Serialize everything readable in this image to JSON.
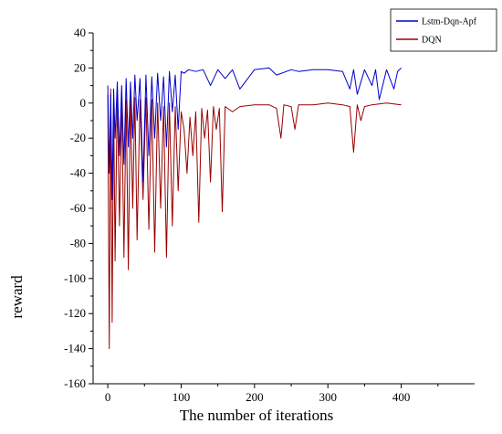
{
  "chart_data": {
    "type": "line",
    "title": "",
    "xlabel": "The number of iterations",
    "ylabel": "reward",
    "xlim": [
      -20,
      500
    ],
    "ylim": [
      -160,
      40
    ],
    "xticks": [
      0,
      100,
      200,
      300,
      400
    ],
    "yticks": [
      40,
      20,
      0,
      -20,
      -40,
      -60,
      -80,
      -100,
      -120,
      -140,
      -160
    ],
    "grid": false,
    "legend_position": "top-right",
    "series": [
      {
        "name": "Lstm-Dqn-Apf",
        "color": "#0000cc",
        "x": [
          0,
          2,
          4,
          6,
          8,
          10,
          13,
          16,
          19,
          22,
          25,
          28,
          31,
          34,
          37,
          40,
          44,
          48,
          52,
          56,
          60,
          64,
          68,
          72,
          76,
          80,
          84,
          88,
          92,
          96,
          100,
          104,
          110,
          120,
          130,
          140,
          150,
          160,
          170,
          180,
          200,
          220,
          230,
          250,
          260,
          280,
          300,
          320,
          330,
          335,
          340,
          350,
          360,
          365,
          370,
          380,
          390,
          395,
          400
        ],
        "y": [
          10,
          -40,
          5,
          -55,
          8,
          -20,
          12,
          -30,
          10,
          -35,
          14,
          -25,
          12,
          -20,
          16,
          -10,
          14,
          -45,
          16,
          -30,
          15,
          -20,
          17,
          -10,
          15,
          -25,
          18,
          -5,
          16,
          -15,
          18,
          17,
          19,
          18,
          19,
          10,
          19,
          14,
          19,
          8,
          19,
          20,
          16,
          19,
          18,
          19,
          19,
          18,
          8,
          19,
          5,
          19,
          10,
          19,
          2,
          19,
          8,
          18,
          20
        ]
      },
      {
        "name": "DQN",
        "color": "#990000",
        "x": [
          0,
          2,
          4,
          6,
          8,
          10,
          13,
          16,
          19,
          22,
          25,
          28,
          31,
          34,
          37,
          40,
          44,
          48,
          52,
          56,
          60,
          64,
          68,
          72,
          76,
          80,
          84,
          88,
          92,
          96,
          100,
          104,
          108,
          112,
          116,
          120,
          124,
          128,
          132,
          136,
          140,
          144,
          148,
          152,
          156,
          160,
          170,
          180,
          200,
          220,
          230,
          236,
          240,
          250,
          255,
          260,
          280,
          300,
          320,
          330,
          335,
          340,
          345,
          350,
          360,
          380,
          400
        ],
        "y": [
          5,
          -140,
          8,
          -125,
          3,
          -90,
          5,
          -70,
          4,
          -88,
          2,
          -95,
          4,
          -60,
          3,
          -78,
          2,
          -55,
          3,
          -72,
          2,
          -85,
          0,
          -60,
          -2,
          -88,
          0,
          -70,
          -2,
          -50,
          -5,
          -15,
          -40,
          -8,
          -30,
          -5,
          -68,
          -3,
          -20,
          -4,
          -45,
          -2,
          -15,
          -3,
          -62,
          -2,
          -5,
          -2,
          -1,
          -1,
          -3,
          -20,
          -1,
          -2,
          -15,
          -1,
          -1,
          0,
          -1,
          -2,
          -28,
          -1,
          -10,
          -2,
          -1,
          0,
          -1
        ]
      }
    ]
  }
}
